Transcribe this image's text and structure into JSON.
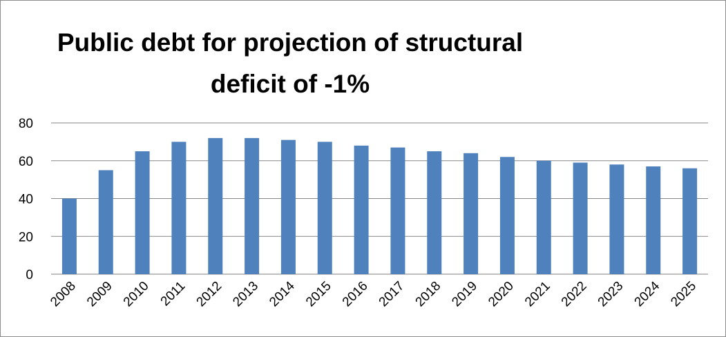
{
  "chart_data": {
    "type": "bar",
    "title_lines": [
      "Public debt for projection of structural",
      "deficit of  -1%"
    ],
    "categories": [
      "2008",
      "2009",
      "2010",
      "2011",
      "2012",
      "2013",
      "2014",
      "2015",
      "2016",
      "2017",
      "2018",
      "2019",
      "2020",
      "2021",
      "2022",
      "2023",
      "2024",
      "2025"
    ],
    "values": [
      40,
      55,
      65,
      70,
      72,
      72,
      71,
      70,
      68,
      67,
      65,
      64,
      62,
      60,
      59,
      58,
      57,
      56
    ],
    "xlabel": "",
    "ylabel": "",
    "ylim": [
      0,
      80
    ],
    "yticks": [
      0,
      20,
      40,
      60,
      80
    ],
    "grid": true,
    "legend": "none",
    "bar_color": "#4f81bd"
  }
}
